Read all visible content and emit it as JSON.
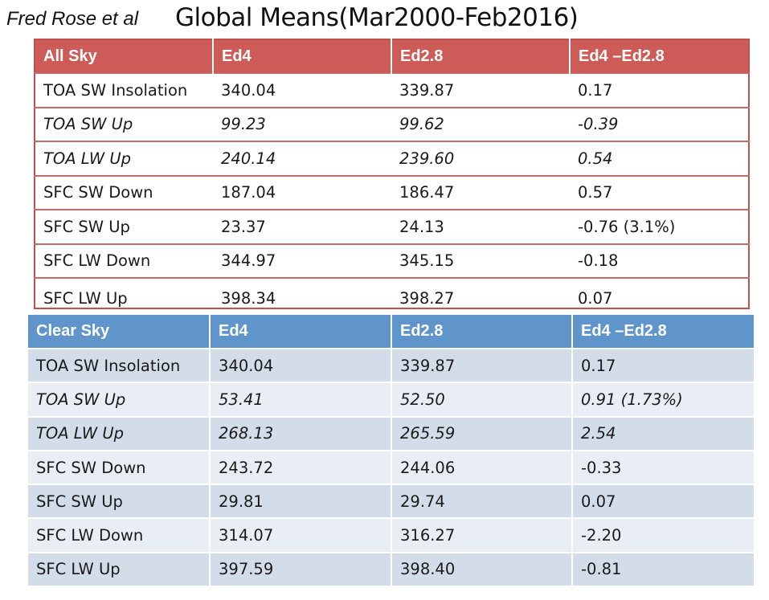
{
  "header": {
    "author": "Fred Rose et al",
    "title": "Global Means(Mar2000-Feb2016)"
  },
  "all_sky": {
    "columns": [
      "All Sky",
      "Ed4",
      "Ed2.8",
      "Ed4 –Ed2.8"
    ],
    "rows": [
      {
        "label": "TOA SW Insolation",
        "ed4": "340.04",
        "ed28": "339.87",
        "diff": "0.17",
        "italic": false
      },
      {
        "label": "TOA SW Up",
        "ed4": "99.23",
        "ed28": "99.62",
        "diff": "-0.39",
        "italic": true
      },
      {
        "label": "TOA LW Up",
        "ed4": "240.14",
        "ed28": "239.60",
        "diff": "0.54",
        "italic": true
      },
      {
        "label": "SFC SW Down",
        "ed4": "187.04",
        "ed28": "186.47",
        "diff": "0.57",
        "italic": false
      },
      {
        "label": "SFC SW Up",
        "ed4": "23.37",
        "ed28": "24.13",
        "diff": "-0.76 (3.1%)",
        "italic": false
      },
      {
        "label": "SFC LW Down",
        "ed4": "344.97",
        "ed28": "345.15",
        "diff": "-0.18",
        "italic": false
      },
      {
        "label": "SFC LW Up",
        "ed4": "398.34",
        "ed28": "398.27",
        "diff": "0.07",
        "italic": false
      }
    ]
  },
  "clear_sky": {
    "columns": [
      "Clear Sky",
      "Ed4",
      "Ed2.8",
      "Ed4 –Ed2.8"
    ],
    "rows": [
      {
        "label": "TOA SW Insolation",
        "ed4": "340.04",
        "ed28": "339.87",
        "diff": "0.17",
        "italic": false
      },
      {
        "label": "TOA SW Up",
        "ed4": "53.41",
        "ed28": "52.50",
        "diff": "0.91 (1.73%)",
        "italic": true
      },
      {
        "label": "TOA LW Up",
        "ed4": "268.13",
        "ed28": "265.59",
        "diff": "2.54",
        "italic": true
      },
      {
        "label": "SFC SW Down",
        "ed4": "243.72",
        "ed28": "244.06",
        "diff": "-0.33",
        "italic": false
      },
      {
        "label": "SFC SW Up",
        "ed4": "29.81",
        "ed28": "29.74",
        "diff": "0.07",
        "italic": false
      },
      {
        "label": "SFC LW Down",
        "ed4": "314.07",
        "ed28": "316.27",
        "diff": "-2.20",
        "italic": false
      },
      {
        "label": "SFC LW Up",
        "ed4": "397.59",
        "ed28": "398.40",
        "diff": "-0.81",
        "italic": false
      }
    ]
  },
  "colors": {
    "all_sky_header": "#cd5c59",
    "all_sky_border": "#c0504d",
    "clear_sky_header": "#5f95cb",
    "clear_sky_row_dark": "#d3dde9",
    "clear_sky_row_light": "#e9eef5"
  }
}
